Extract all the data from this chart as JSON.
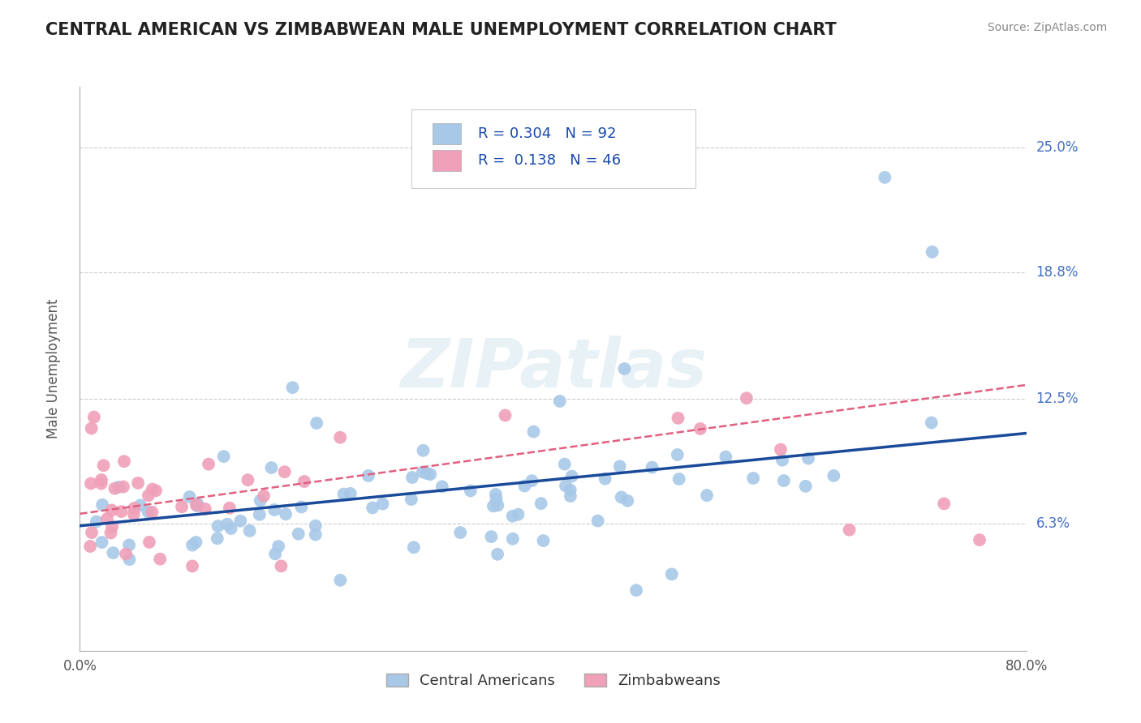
{
  "title": "CENTRAL AMERICAN VS ZIMBABWEAN MALE UNEMPLOYMENT CORRELATION CHART",
  "source": "Source: ZipAtlas.com",
  "ylabel": "Male Unemployment",
  "xlim": [
    0.0,
    0.8
  ],
  "ylim": [
    0.0,
    0.28
  ],
  "ytick_positions": [
    0.063,
    0.125,
    0.188,
    0.25
  ],
  "ytick_labels": [
    "6.3%",
    "12.5%",
    "18.8%",
    "25.0%"
  ],
  "blue_color": "#a8c8e8",
  "pink_color": "#f0a0b8",
  "blue_line_color": "#1a4a9a",
  "pink_line_color": "#e06080",
  "legend_R1": "0.304",
  "legend_N1": "92",
  "legend_R2": "0.138",
  "legend_N2": "46",
  "watermark": "ZIPatlas",
  "background_color": "#ffffff",
  "grid_color": "#cccccc",
  "title_color": "#222222",
  "blue_trend_x0": 0.0,
  "blue_trend_y0": 0.062,
  "blue_trend_x1": 0.8,
  "blue_trend_y1": 0.108,
  "pink_trend_x0": 0.0,
  "pink_trend_y0": 0.068,
  "pink_trend_x1": 0.8,
  "pink_trend_y1": 0.132
}
